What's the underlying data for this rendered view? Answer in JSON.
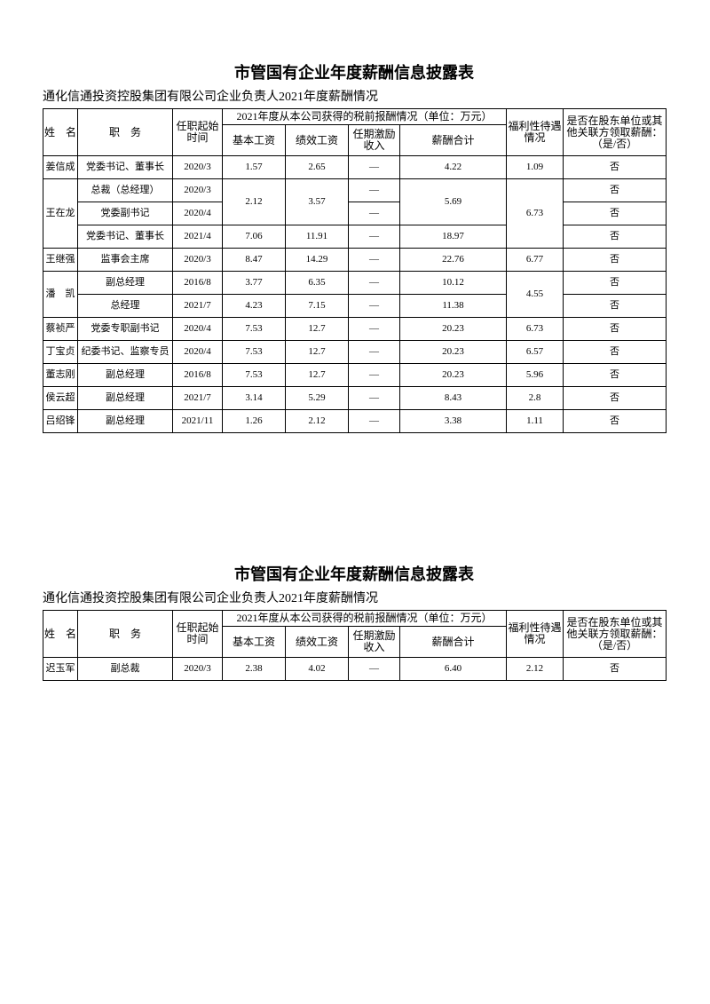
{
  "sections": [
    {
      "title": "市管国有企业年度薪酬信息披露表",
      "subtitle": "通化信通投资控股集团有限公司企业负责人2021年度薪酬情况",
      "header": {
        "name": "姓　名",
        "position": "职　务",
        "start": "任职起始时间",
        "comp": "2021年度从本公司获得的税前报酬情况（单位：万元）",
        "base": "基本工资",
        "perf": "绩效工资",
        "term": "任期激励收入",
        "total": "薪酬合计",
        "welfare": "福利性待遇情况",
        "other": "是否在股东单位或其他关联方领取薪酬：（是/否）"
      },
      "rows": [
        [
          "姜信成",
          "党委书记、董事长",
          "2020/3",
          "1.57",
          "2.65",
          "—",
          "4.22",
          "1.09",
          "否"
        ],
        [
          "王在龙",
          "总裁（总经理）",
          "2020/3",
          "2.12",
          "3.57",
          "—",
          "5.69",
          "6.73",
          "否"
        ],
        [
          "党委副书记",
          "2020/4",
          "—",
          "否"
        ],
        [
          "党委书记、董事长",
          "2021/4",
          "7.06",
          "11.91",
          "—",
          "18.97",
          "否"
        ],
        [
          "王继强",
          "监事会主席",
          "2020/3",
          "8.47",
          "14.29",
          "—",
          "22.76",
          "6.77",
          "否"
        ],
        [
          "潘　凯",
          "副总经理",
          "2016/8",
          "3.77",
          "6.35",
          "—",
          "10.12",
          "4.55",
          "否"
        ],
        [
          "总经理",
          "2021/7",
          "4.23",
          "7.15",
          "—",
          "11.38",
          "否"
        ],
        [
          "蔡祯严",
          "党委专职副书记",
          "2020/4",
          "7.53",
          "12.7",
          "—",
          "20.23",
          "6.73",
          "否"
        ],
        [
          "丁宝贞",
          "纪委书记、监察专员",
          "2020/4",
          "7.53",
          "12.7",
          "—",
          "20.23",
          "6.57",
          "否"
        ],
        [
          "董志刚",
          "副总经理",
          "2016/8",
          "7.53",
          "12.7",
          "—",
          "20.23",
          "5.96",
          "否"
        ],
        [
          "侯云超",
          "副总经理",
          "2021/7",
          "3.14",
          "5.29",
          "—",
          "8.43",
          "2.8",
          "否"
        ],
        [
          "吕绍锋",
          "副总经理",
          "2021/11",
          "1.26",
          "2.12",
          "—",
          "3.38",
          "1.11",
          "否"
        ]
      ]
    },
    {
      "title": "市管国有企业年度薪酬信息披露表",
      "subtitle": "通化信通投资控股集团有限公司企业负责人2021年度薪酬情况",
      "header": {
        "name": "姓　名",
        "position": "职　务",
        "start": "任职起始时间",
        "comp": "2021年度从本公司获得的税前报酬情况（单位：万元）",
        "base": "基本工资",
        "perf": "绩效工资",
        "term": "任期激励收入",
        "total": "薪酬合计",
        "welfare": "福利性待遇情况",
        "other": "是否在股东单位或其他关联方领取薪酬：（是/否）"
      },
      "rows": [
        [
          "迟玉军",
          "副总裁",
          "2020/3",
          "2.38",
          "4.02",
          "—",
          "6.40",
          "2.12",
          "否"
        ]
      ]
    }
  ]
}
